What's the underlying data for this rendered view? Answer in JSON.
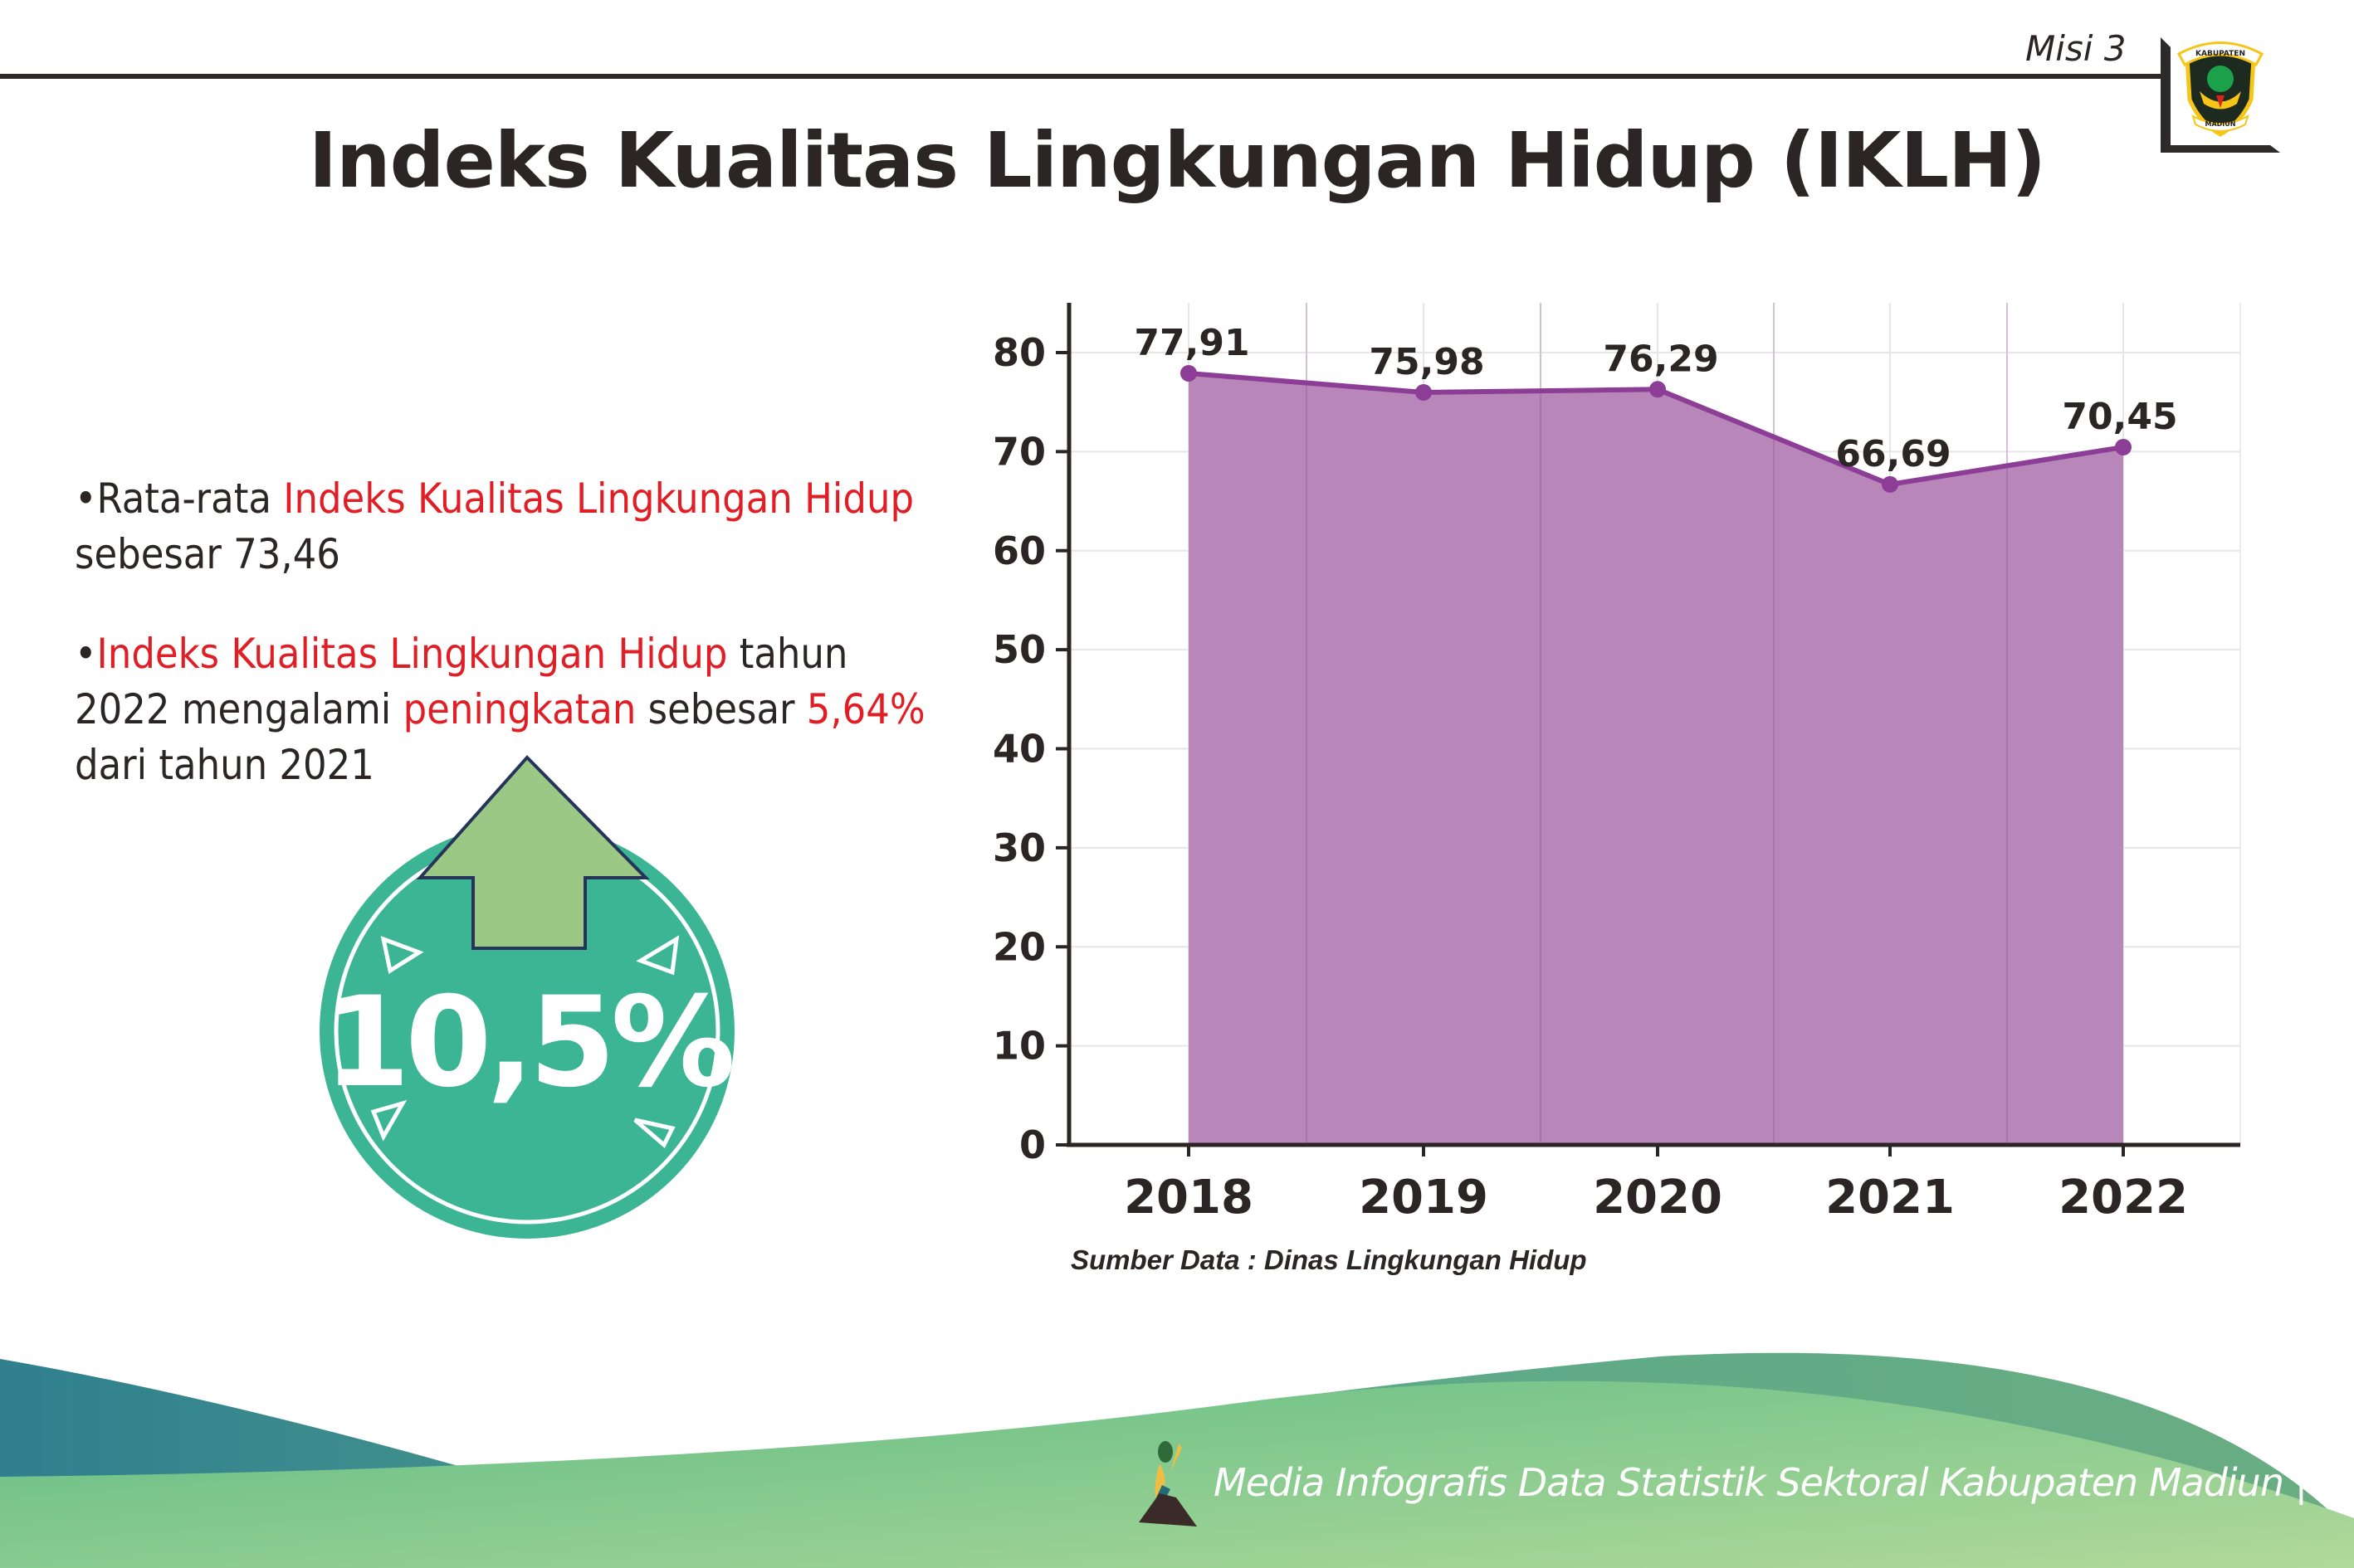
{
  "header": {
    "mission_label": "Misi 3",
    "logo_text_top": "KABUPATEN",
    "logo_text_bottom": "MADIUN"
  },
  "title": "Indeks Kualitas Lingkungan Hidup (IKLH)",
  "bullets": [
    {
      "parts": [
        "•Rata-rata ",
        "Indeks Kualitas Lingkungan Hidup",
        " sebesar 73,46"
      ]
    },
    {
      "parts": [
        "•",
        "Indeks Kualitas Lingkungan Hidup",
        " tahun 2022 mengalami ",
        "peningkatan",
        " sebesar ",
        "5,64%",
        " dari tahun 2021"
      ]
    }
  ],
  "badge": {
    "value": "10,5%",
    "icon": "arrow-up-icon",
    "circle_color": "#3bb594",
    "arrow_color": "#9bc985"
  },
  "colors": {
    "highlight": "#e01e26",
    "area_fill": "#b886b9",
    "line": "#8c3d96",
    "text": "#2b2525"
  },
  "chart_data": {
    "type": "area",
    "categories": [
      "2018",
      "2019",
      "2020",
      "2021",
      "2022"
    ],
    "values": [
      77.91,
      75.98,
      76.29,
      66.69,
      70.45
    ],
    "data_labels": [
      "77,91",
      "75,98",
      "76,29",
      "66,69",
      "70,45"
    ],
    "ylim": [
      0,
      85
    ],
    "yticks": [
      0,
      10,
      20,
      30,
      40,
      50,
      60,
      70,
      80
    ],
    "grid": true,
    "legend": "none"
  },
  "source": "Sumber Data : Dinas Lingkungan Hidup",
  "footer": {
    "text": "Media Infografis Data Statistik Sektoral Kabupaten Madiun |"
  }
}
